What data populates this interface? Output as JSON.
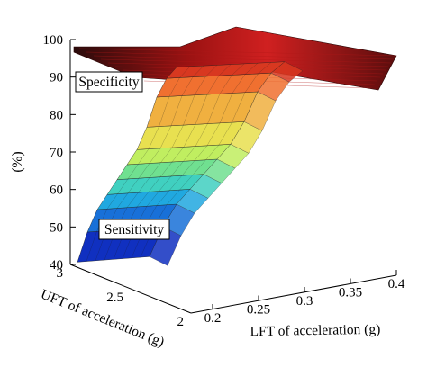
{
  "chart_data": {
    "type": "surface3d",
    "title": "",
    "zlabel": "(%)",
    "xlabel": "LFT of acceleration (g)",
    "ylabel": "UFT of acceleration (g)",
    "zlim": [
      40,
      100
    ],
    "xlim": [
      0.2,
      0.4
    ],
    "ylim": [
      2,
      3
    ],
    "z_ticks": [
      "40",
      "50",
      "60",
      "70",
      "80",
      "90",
      "100"
    ],
    "x_ticks": [
      "0.2",
      "0.25",
      "0.3",
      "0.35",
      "0.4"
    ],
    "y_ticks": [
      "2",
      "2.5",
      "3"
    ],
    "grid": false,
    "series": [
      {
        "name": "Specificity",
        "description": "upper surface near 95–99%",
        "lft": [
          0.2,
          0.25,
          0.3,
          0.35,
          0.4
        ],
        "uft": [
          3.0,
          2.5,
          2.0
        ],
        "z": [
          [
            98,
            98,
            97,
            96,
            95
          ],
          [
            98,
            97,
            97,
            96,
            96
          ],
          [
            98,
            97,
            96,
            96,
            96
          ]
        ]
      },
      {
        "name": "Sensitivity",
        "description": "lower surface rising with UFT decreasing",
        "lft": [
          0.2,
          0.25,
          0.3,
          0.35,
          0.4
        ],
        "uft": [
          3.0,
          2.9,
          2.8,
          2.7,
          2.6,
          2.5,
          2.4,
          2.3,
          2.2,
          2.1,
          2.0
        ],
        "z_profile": [
          44,
          52,
          58,
          62,
          66,
          70,
          74,
          80,
          88,
          93,
          96
        ]
      }
    ],
    "annotations": [
      "Specificity",
      "Sensitivity"
    ]
  }
}
